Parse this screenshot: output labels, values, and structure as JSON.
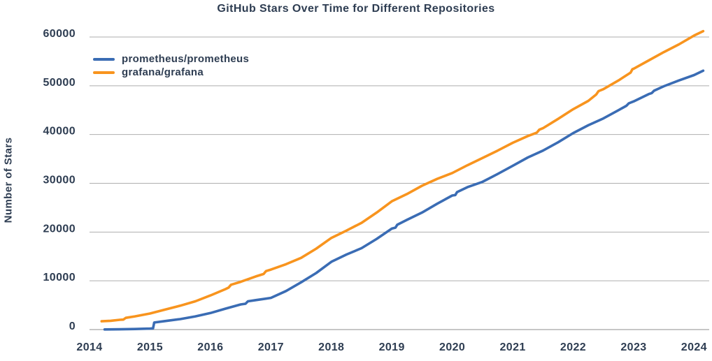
{
  "style": {
    "text_color": "#2e3d52",
    "grid_color": "#aeaeae",
    "axis_color": "#8d8d8d",
    "background": "#ffffff"
  },
  "chart_data": {
    "type": "line",
    "title": "GitHub Stars Over Time for Different Repositories",
    "xlabel": "",
    "ylabel": "Number of Stars",
    "xlim": [
      2014,
      2024.25
    ],
    "ylim": [
      0,
      60000
    ],
    "x_ticks": [
      2014,
      2015,
      2016,
      2017,
      2018,
      2019,
      2020,
      2021,
      2022,
      2023,
      2024
    ],
    "y_ticks": [
      0,
      10000,
      20000,
      30000,
      40000,
      50000,
      60000
    ],
    "grid": "horizontal",
    "legend_position": "upper-left-inside",
    "series": [
      {
        "name": "prometheus/prometheus",
        "color": "#3a6cb4",
        "points": [
          [
            2014.25,
            30
          ],
          [
            2014.5,
            60
          ],
          [
            2014.75,
            110
          ],
          [
            2015.0,
            200
          ],
          [
            2015.05,
            250
          ],
          [
            2015.07,
            1450
          ],
          [
            2015.25,
            1750
          ],
          [
            2015.5,
            2150
          ],
          [
            2015.75,
            2700
          ],
          [
            2016.0,
            3400
          ],
          [
            2016.25,
            4300
          ],
          [
            2016.5,
            5150
          ],
          [
            2016.58,
            5300
          ],
          [
            2016.62,
            5800
          ],
          [
            2016.75,
            6050
          ],
          [
            2017.0,
            6500
          ],
          [
            2017.25,
            7900
          ],
          [
            2017.5,
            9700
          ],
          [
            2017.75,
            11600
          ],
          [
            2018.0,
            13900
          ],
          [
            2018.25,
            15400
          ],
          [
            2018.5,
            16700
          ],
          [
            2018.75,
            18600
          ],
          [
            2019.0,
            20700
          ],
          [
            2019.06,
            20900
          ],
          [
            2019.09,
            21500
          ],
          [
            2019.25,
            22500
          ],
          [
            2019.5,
            24000
          ],
          [
            2019.75,
            25800
          ],
          [
            2020.0,
            27500
          ],
          [
            2020.05,
            27600
          ],
          [
            2020.08,
            28200
          ],
          [
            2020.25,
            29200
          ],
          [
            2020.5,
            30300
          ],
          [
            2020.75,
            31900
          ],
          [
            2021.0,
            33600
          ],
          [
            2021.25,
            35300
          ],
          [
            2021.5,
            36700
          ],
          [
            2021.75,
            38400
          ],
          [
            2022.0,
            40300
          ],
          [
            2022.25,
            41900
          ],
          [
            2022.5,
            43300
          ],
          [
            2022.75,
            45000
          ],
          [
            2022.88,
            45900
          ],
          [
            2022.92,
            46400
          ],
          [
            2023.0,
            46800
          ],
          [
            2023.25,
            48300
          ],
          [
            2023.3,
            48500
          ],
          [
            2023.34,
            49000
          ],
          [
            2023.5,
            49900
          ],
          [
            2023.75,
            51100
          ],
          [
            2024.0,
            52200
          ],
          [
            2024.15,
            53100
          ]
        ]
      },
      {
        "name": "grafana/grafana",
        "color": "#f8941e",
        "points": [
          [
            2014.2,
            1700
          ],
          [
            2014.35,
            1800
          ],
          [
            2014.5,
            2000
          ],
          [
            2014.56,
            2050
          ],
          [
            2014.6,
            2400
          ],
          [
            2014.75,
            2700
          ],
          [
            2015.0,
            3300
          ],
          [
            2015.25,
            4100
          ],
          [
            2015.5,
            4900
          ],
          [
            2015.75,
            5800
          ],
          [
            2016.0,
            7000
          ],
          [
            2016.25,
            8300
          ],
          [
            2016.3,
            8600
          ],
          [
            2016.34,
            9200
          ],
          [
            2016.5,
            9800
          ],
          [
            2016.75,
            10900
          ],
          [
            2016.88,
            11400
          ],
          [
            2016.92,
            12000
          ],
          [
            2017.0,
            12300
          ],
          [
            2017.25,
            13400
          ],
          [
            2017.5,
            14700
          ],
          [
            2017.75,
            16600
          ],
          [
            2018.0,
            18800
          ],
          [
            2018.25,
            20300
          ],
          [
            2018.5,
            21900
          ],
          [
            2018.75,
            24000
          ],
          [
            2019.0,
            26300
          ],
          [
            2019.25,
            27800
          ],
          [
            2019.5,
            29500
          ],
          [
            2019.75,
            30900
          ],
          [
            2020.0,
            32100
          ],
          [
            2020.25,
            33700
          ],
          [
            2020.5,
            35200
          ],
          [
            2020.75,
            36700
          ],
          [
            2021.0,
            38300
          ],
          [
            2021.25,
            39700
          ],
          [
            2021.4,
            40400
          ],
          [
            2021.44,
            41000
          ],
          [
            2021.5,
            41300
          ],
          [
            2021.75,
            43200
          ],
          [
            2022.0,
            45200
          ],
          [
            2022.25,
            46900
          ],
          [
            2022.38,
            48200
          ],
          [
            2022.42,
            48900
          ],
          [
            2022.5,
            49300
          ],
          [
            2022.75,
            51100
          ],
          [
            2022.95,
            52700
          ],
          [
            2022.98,
            53400
          ],
          [
            2023.0,
            53500
          ],
          [
            2023.25,
            55200
          ],
          [
            2023.5,
            56900
          ],
          [
            2023.75,
            58500
          ],
          [
            2024.0,
            60300
          ],
          [
            2024.15,
            61200
          ]
        ]
      }
    ]
  }
}
